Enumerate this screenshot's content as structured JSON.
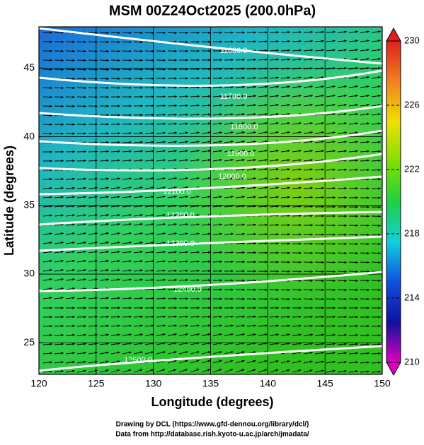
{
  "chart_data": {
    "type": "map",
    "title": "MSM 00Z24Oct2025 (200.0hPa)",
    "x_label": "Longitude (degrees)",
    "y_label": "Latitude  (degrees)",
    "xlim": [
      120,
      150
    ],
    "xticks": [
      120,
      125,
      130,
      135,
      140,
      145,
      150
    ],
    "ylim": [
      22.7,
      48
    ],
    "yticks": [
      25,
      30,
      35,
      40,
      45
    ],
    "grid": true,
    "contours": [
      {
        "value": 11600,
        "label": "11600.0"
      },
      {
        "value": 11700,
        "label": "11700.0"
      },
      {
        "value": 11800,
        "label": "11800.0"
      },
      {
        "value": 11900,
        "label": "11900.0"
      },
      {
        "value": 12000,
        "label": "12000.0"
      },
      {
        "value": 12100,
        "label": "12100.0"
      },
      {
        "value": 12200,
        "label": "12200.0"
      },
      {
        "value": 12300,
        "label": "12300.0"
      },
      {
        "value": 12400,
        "label": "12400.0"
      },
      {
        "value": 12500,
        "label": "12500.0"
      }
    ],
    "colorbar": {
      "lim": [
        210,
        230
      ],
      "ticks": [
        210,
        214,
        218,
        222,
        226,
        230
      ],
      "colors": [
        "#e000c0",
        "#1010a0",
        "#1050e0",
        "#10d0e0",
        "#20d040",
        "#80e000",
        "#f0e000",
        "#f08020",
        "#e02020"
      ]
    },
    "credits": [
      "Drawing by DCL (https://www.gfd-dennou.org/library/dcl/)",
      "Data from http://database.rish.kyoto-u.ac.jp/arch/jmadata/"
    ]
  }
}
